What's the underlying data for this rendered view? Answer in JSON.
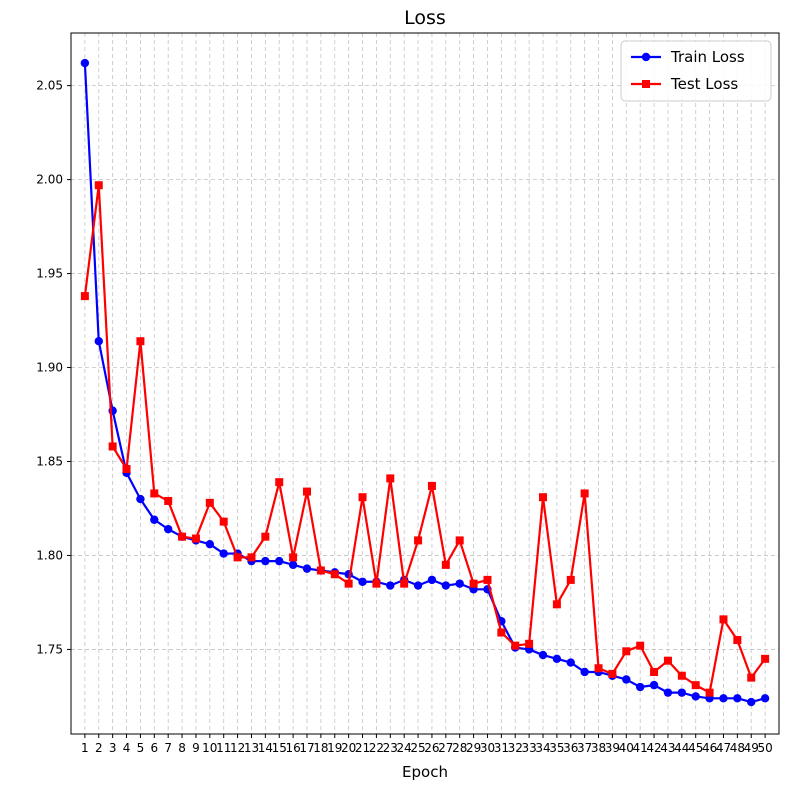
{
  "chart_data": {
    "type": "line",
    "title": "Loss",
    "xlabel": "Epoch",
    "ylabel": "",
    "x": [
      1,
      2,
      3,
      4,
      5,
      6,
      7,
      8,
      9,
      10,
      11,
      12,
      13,
      14,
      15,
      16,
      17,
      18,
      19,
      20,
      21,
      22,
      23,
      24,
      25,
      26,
      27,
      28,
      29,
      30,
      31,
      32,
      33,
      34,
      35,
      36,
      37,
      38,
      39,
      40,
      41,
      42,
      43,
      44,
      45,
      46,
      47,
      48,
      49,
      50
    ],
    "xlim": [
      0.0,
      51.0
    ],
    "ylim": [
      1.705,
      2.078
    ],
    "yticks": [
      1.75,
      1.8,
      1.85,
      1.9,
      1.95,
      2.0,
      2.05
    ],
    "ytick_labels": [
      "1.75",
      "1.80",
      "1.85",
      "1.90",
      "1.95",
      "2.00",
      "2.05"
    ],
    "grid": true,
    "legend_position": "top-right",
    "series": [
      {
        "name": "Train Loss",
        "color": "#0000ff",
        "marker": "circle",
        "values": [
          2.062,
          1.914,
          1.877,
          1.844,
          1.83,
          1.819,
          1.814,
          1.81,
          1.808,
          1.806,
          1.801,
          1.801,
          1.797,
          1.797,
          1.797,
          1.795,
          1.793,
          1.792,
          1.791,
          1.79,
          1.786,
          1.786,
          1.784,
          1.787,
          1.784,
          1.787,
          1.784,
          1.785,
          1.782,
          1.782,
          1.765,
          1.751,
          1.75,
          1.747,
          1.745,
          1.743,
          1.738,
          1.738,
          1.736,
          1.734,
          1.73,
          1.731,
          1.727,
          1.727,
          1.725,
          1.724,
          1.724,
          1.724,
          1.722,
          1.724
        ]
      },
      {
        "name": "Test Loss",
        "color": "#ff0000",
        "marker": "square",
        "values": [
          1.938,
          1.997,
          1.858,
          1.846,
          1.914,
          1.833,
          1.829,
          1.81,
          1.809,
          1.828,
          1.818,
          1.799,
          1.799,
          1.81,
          1.839,
          1.799,
          1.834,
          1.792,
          1.79,
          1.785,
          1.831,
          1.785,
          1.841,
          1.785,
          1.808,
          1.837,
          1.795,
          1.808,
          1.785,
          1.787,
          1.759,
          1.752,
          1.753,
          1.831,
          1.774,
          1.787,
          1.833,
          1.74,
          1.737,
          1.749,
          1.752,
          1.738,
          1.744,
          1.736,
          1.731,
          1.727,
          1.766,
          1.755,
          1.735,
          1.745
        ]
      }
    ]
  }
}
